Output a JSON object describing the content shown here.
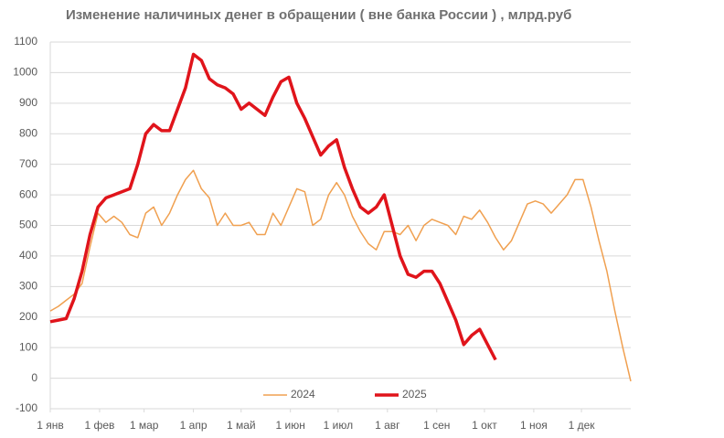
{
  "chart_data": {
    "type": "line",
    "title": "Изменение наличиных денег в обращении ( вне банка России ) , млрд.руб",
    "x": [
      0,
      5,
      10,
      15,
      20,
      25,
      30,
      35,
      40,
      45,
      50,
      55,
      60,
      65,
      70,
      75,
      80,
      85,
      90,
      95,
      100,
      105,
      110,
      115,
      120,
      125,
      130,
      135,
      140,
      145,
      150,
      155,
      160,
      165,
      170,
      175,
      180,
      185,
      190,
      195,
      200,
      205,
      210,
      215,
      220,
      225,
      230,
      235,
      240,
      245,
      250,
      255,
      260,
      265,
      270,
      275,
      280,
      285,
      290,
      295,
      300,
      305,
      310,
      315,
      320,
      325,
      330,
      335,
      340,
      345,
      350,
      355,
      360,
      365
    ],
    "series": [
      {
        "name": "2024",
        "color": "#f0a050",
        "width": 1.5,
        "values": [
          220,
          235,
          255,
          275,
          310,
          430,
          540,
          510,
          530,
          510,
          470,
          460,
          540,
          560,
          500,
          540,
          600,
          650,
          680,
          620,
          590,
          500,
          540,
          500,
          500,
          510,
          470,
          470,
          540,
          500,
          560,
          620,
          610,
          500,
          520,
          600,
          640,
          600,
          530,
          480,
          440,
          420,
          480,
          480,
          470,
          500,
          450,
          500,
          520,
          510,
          500,
          470,
          530,
          520,
          550,
          510,
          460,
          420,
          450,
          510,
          570,
          580,
          570,
          540,
          570,
          600,
          650,
          650,
          560,
          450,
          350,
          220,
          100,
          -10
        ]
      },
      {
        "name": "2025",
        "color": "#e0141b",
        "width": 3.5,
        "values": [
          185,
          190,
          195,
          260,
          350,
          470,
          560,
          590,
          600,
          610,
          620,
          700,
          800,
          830,
          810,
          810,
          880,
          950,
          1060,
          1040,
          980,
          960,
          950,
          930,
          880,
          900,
          880,
          860,
          920,
          970,
          985,
          900,
          850,
          790,
          730,
          760,
          780,
          690,
          620,
          560,
          540,
          560,
          600,
          500,
          400,
          340,
          330,
          350,
          350,
          310,
          250,
          190,
          110,
          140,
          160,
          110,
          60,
          null,
          null,
          null,
          null,
          null,
          null,
          null,
          null,
          null,
          null,
          null,
          null,
          null,
          null,
          null,
          null,
          null
        ]
      }
    ],
    "xlim": [
      0,
      365
    ],
    "xticks": [
      {
        "value": 0,
        "label": "1 янв"
      },
      {
        "value": 31,
        "label": "1 фев"
      },
      {
        "value": 59,
        "label": "1 мар"
      },
      {
        "value": 90,
        "label": "1 апр"
      },
      {
        "value": 120,
        "label": "1 май"
      },
      {
        "value": 151,
        "label": "1 июн"
      },
      {
        "value": 181,
        "label": "1 июл"
      },
      {
        "value": 212,
        "label": "1 авг"
      },
      {
        "value": 243,
        "label": "1 сен"
      },
      {
        "value": 273,
        "label": "1 окт"
      },
      {
        "value": 304,
        "label": "1 ноя"
      },
      {
        "value": 334,
        "label": "1 дек"
      }
    ],
    "ylim": [
      -100,
      1100
    ],
    "yticks": [
      -100,
      0,
      100,
      200,
      300,
      400,
      500,
      600,
      700,
      800,
      900,
      1000,
      1100
    ],
    "grid": true,
    "legend": "bottom"
  }
}
